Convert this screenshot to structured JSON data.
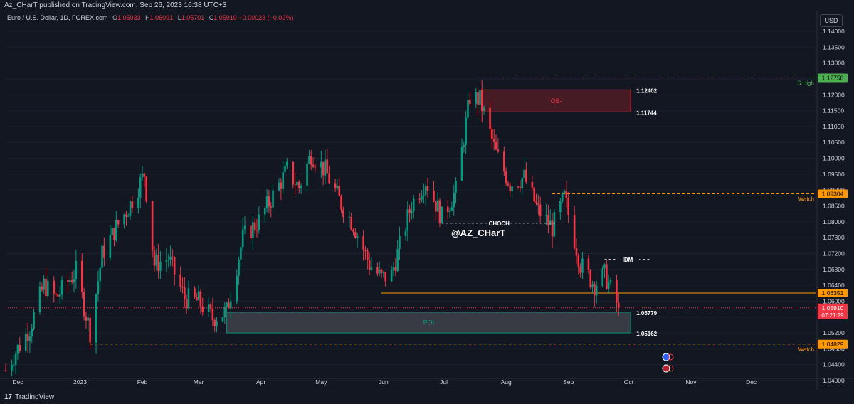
{
  "header": {
    "published": "Az_CHarT published on TradingView.com, Sep 26, 2023 16:38 UTC+3",
    "symbol": "Euro / U.S. Dollar, 1D, FOREX.com",
    "o_label": "O",
    "o_value": "1.05933",
    "h_label": "H",
    "h_value": "1.06091",
    "l_label": "L",
    "l_value": "1.05701",
    "c_label": "C",
    "c_value": "1.05910",
    "change": "−0.00023 (−0.02%)"
  },
  "currency_button": "USD",
  "footer": {
    "brand": "TradingView",
    "logo": "17"
  },
  "colors": {
    "up": "#089981",
    "down": "#f23645",
    "orange": "#ff9800",
    "green_label": "#4caf50",
    "ob_fill": "#4a1c24",
    "poi_fill": "#3a3d45"
  },
  "chart_data": {
    "type": "candlestick",
    "y_axis": {
      "ticks": [
        "1.14000",
        "1.13500",
        "1.13000",
        "1.12500",
        "1.12000",
        "1.11500",
        "1.11000",
        "1.10500",
        "1.10000",
        "1.09500",
        "1.09000",
        "1.08500",
        "1.08000",
        "1.07800",
        "1.07200",
        "1.06800",
        "1.06400",
        "1.06000",
        "1.05600",
        "1.05200",
        "1.04800",
        "1.04400",
        "1.04000"
      ],
      "ylim": [
        1.0385,
        1.144
      ]
    },
    "x_axis": {
      "ticks": [
        "Dec",
        "2023",
        "Feb",
        "Mar",
        "Apr",
        "May",
        "Jun",
        "Jul",
        "Aug",
        "Sep",
        "Oct",
        "Nov",
        "Dec"
      ]
    },
    "anchors": [
      [
        "2022-11-25",
        1.0405
      ],
      [
        "2022-12-01",
        1.047
      ],
      [
        "2022-12-07",
        1.053
      ],
      [
        "2022-12-14",
        1.066
      ],
      [
        "2022-12-20",
        1.062
      ],
      [
        "2022-12-30",
        1.07
      ],
      [
        "2023-01-06",
        1.052
      ],
      [
        "2023-01-12",
        1.075
      ],
      [
        "2023-01-18",
        1.082
      ],
      [
        "2023-01-26",
        1.09
      ],
      [
        "2023-02-02",
        1.099
      ],
      [
        "2023-02-07",
        1.072
      ],
      [
        "2023-02-14",
        1.074
      ],
      [
        "2023-02-22",
        1.062
      ],
      [
        "2023-03-01",
        1.061
      ],
      [
        "2023-03-08",
        1.056
      ],
      [
        "2023-03-15",
        1.058
      ],
      [
        "2023-03-23",
        1.08
      ],
      [
        "2023-03-31",
        1.085
      ],
      [
        "2023-04-14",
        1.1
      ],
      [
        "2023-04-20",
        1.095
      ],
      [
        "2023-04-26",
        1.105
      ],
      [
        "2023-05-03",
        1.1
      ],
      [
        "2023-05-11",
        1.09
      ],
      [
        "2023-05-17",
        1.084
      ],
      [
        "2023-05-25",
        1.072
      ],
      [
        "2023-05-31",
        1.068
      ],
      [
        "2023-06-05",
        1.069
      ],
      [
        "2023-06-15",
        1.09
      ],
      [
        "2023-06-22",
        1.097
      ],
      [
        "2023-06-30",
        1.086
      ],
      [
        "2023-07-07",
        1.094
      ],
      [
        "2023-07-14",
        1.122
      ],
      [
        "2023-07-19",
        1.121
      ],
      [
        "2023-07-27",
        1.105
      ],
      [
        "2023-08-03",
        1.096
      ],
      [
        "2023-08-10",
        1.098
      ],
      [
        "2023-08-17",
        1.088
      ],
      [
        "2023-08-24",
        1.083
      ],
      [
        "2023-08-30",
        1.092
      ],
      [
        "2023-09-07",
        1.072
      ],
      [
        "2023-09-14",
        1.066
      ],
      [
        "2023-09-19",
        1.069
      ],
      [
        "2023-09-26",
        1.0591
      ]
    ],
    "levels": [
      {
        "label": "S.High",
        "price_label": "1.12758",
        "value": 1.12758,
        "color": "#4caf50",
        "style": "dashed",
        "start": "2023-07-18"
      },
      {
        "label": "Watch",
        "price_label": "1.09304",
        "value": 1.09304,
        "color": "#ff9800",
        "style": "dashed",
        "start": "2023-08-24"
      },
      {
        "label": "",
        "price_label": "1.06351",
        "value": 1.06351,
        "color": "#ff9800",
        "style": "solid",
        "start": "2023-05-31"
      },
      {
        "label": "Watch",
        "price_label": "1.04829",
        "value": 1.04829,
        "color": "#ff9800",
        "style": "dashed",
        "start": "2023-01-06"
      }
    ],
    "current_price": {
      "price_label": "1.05910",
      "value": 1.0591,
      "countdown": "07:21:29"
    },
    "zones": [
      {
        "label": "OB-",
        "top": 1.12402,
        "bottom": 1.11744,
        "top_label": "1.12402",
        "bottom_label": "1.11744",
        "start": "2023-07-20",
        "end": "2023-10-02"
      },
      {
        "label": "POI",
        "top": 1.05779,
        "bottom": 1.05162,
        "top_label": "1.05779",
        "bottom_label": "1.05162",
        "start": "2023-03-15",
        "end": "2023-10-02"
      }
    ],
    "annotations": [
      {
        "text": "CHOCH",
        "value": 1.0843,
        "start": "2023-06-30",
        "end": "2023-08-26"
      },
      {
        "text": "IDM",
        "value": 1.0735,
        "start": "2023-09-19",
        "end": "2023-10-12"
      }
    ],
    "watermark": "@AZ_CHarT"
  }
}
